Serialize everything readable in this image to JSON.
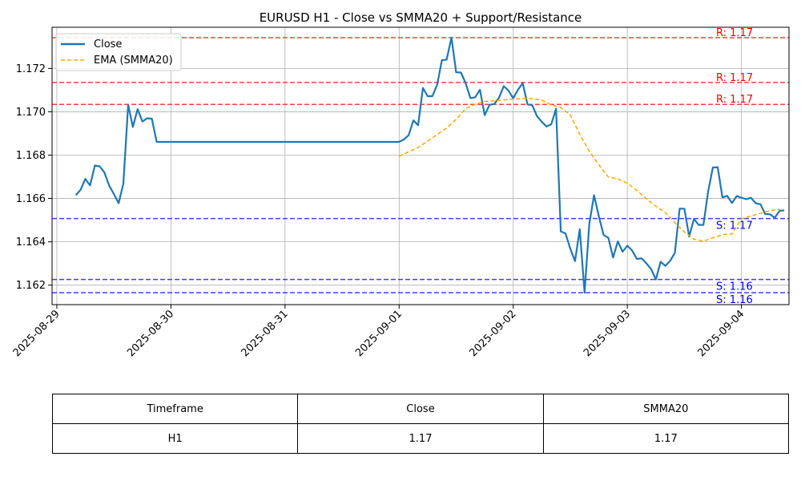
{
  "colors": {
    "close": "#1f77b4",
    "ema": "#ffa500",
    "resistance": "#ff0000",
    "support": "#0000ff",
    "grid": "#b0b0b0"
  },
  "chart_data": {
    "type": "line",
    "title": "EURUSD H1 - Close vs SMMA20 + Support/Resistance",
    "xlabel": "",
    "ylabel": "",
    "xlim": [
      "2025-08-28T23:00",
      "2025-09-04T10:00"
    ],
    "ylim": [
      1.1611,
      1.1739
    ],
    "grid": true,
    "legend_position": "upper-left",
    "x_ticks": [
      "2025-08-29",
      "2025-08-30",
      "2025-08-31",
      "2025-09-01",
      "2025-09-02",
      "2025-09-03",
      "2025-09-04"
    ],
    "y_ticks": [
      "1.162",
      "1.164",
      "1.166",
      "1.168",
      "1.170",
      "1.172"
    ],
    "series": [
      {
        "name": "Close",
        "style": "solid",
        "x": [
          "2025-08-29T04:00",
          "2025-08-29T05:00",
          "2025-08-29T06:00",
          "2025-08-29T07:00",
          "2025-08-29T08:00",
          "2025-08-29T09:00",
          "2025-08-29T10:00",
          "2025-08-29T11:00",
          "2025-08-29T12:00",
          "2025-08-29T13:00",
          "2025-08-29T14:00",
          "2025-08-29T15:00",
          "2025-08-29T16:00",
          "2025-08-29T17:00",
          "2025-08-29T18:00",
          "2025-08-29T19:00",
          "2025-08-29T20:00",
          "2025-08-29T21:00",
          "2025-08-29T22:00",
          "2025-08-29T23:00",
          "2025-09-01T00:00",
          "2025-09-01T01:00",
          "2025-09-01T02:00",
          "2025-09-01T03:00",
          "2025-09-01T04:00",
          "2025-09-01T05:00",
          "2025-09-01T06:00",
          "2025-09-01T07:00",
          "2025-09-01T08:00",
          "2025-09-01T09:00",
          "2025-09-01T10:00",
          "2025-09-01T11:00",
          "2025-09-01T12:00",
          "2025-09-01T13:00",
          "2025-09-01T14:00",
          "2025-09-01T15:00",
          "2025-09-01T16:00",
          "2025-09-01T17:00",
          "2025-09-01T18:00",
          "2025-09-01T19:00",
          "2025-09-01T20:00",
          "2025-09-01T21:00",
          "2025-09-01T22:00",
          "2025-09-01T23:00",
          "2025-09-02T00:00",
          "2025-09-02T01:00",
          "2025-09-02T02:00",
          "2025-09-02T03:00",
          "2025-09-02T04:00",
          "2025-09-02T05:00",
          "2025-09-02T06:00",
          "2025-09-02T07:00",
          "2025-09-02T08:00",
          "2025-09-02T09:00",
          "2025-09-02T10:00",
          "2025-09-02T11:00",
          "2025-09-02T12:00",
          "2025-09-02T13:00",
          "2025-09-02T14:00",
          "2025-09-02T15:00",
          "2025-09-02T16:00",
          "2025-09-02T17:00",
          "2025-09-02T18:00",
          "2025-09-02T19:00",
          "2025-09-02T20:00",
          "2025-09-02T21:00",
          "2025-09-02T22:00",
          "2025-09-02T23:00",
          "2025-09-03T00:00",
          "2025-09-03T01:00",
          "2025-09-03T02:00",
          "2025-09-03T03:00",
          "2025-09-03T04:00",
          "2025-09-03T05:00",
          "2025-09-03T06:00",
          "2025-09-03T07:00",
          "2025-09-03T08:00",
          "2025-09-03T09:00",
          "2025-09-03T10:00",
          "2025-09-03T11:00",
          "2025-09-03T12:00",
          "2025-09-03T13:00",
          "2025-09-03T14:00",
          "2025-09-03T15:00",
          "2025-09-03T16:00",
          "2025-09-03T17:00",
          "2025-09-03T18:00",
          "2025-09-03T19:00",
          "2025-09-03T20:00",
          "2025-09-03T21:00",
          "2025-09-03T22:00",
          "2025-09-03T23:00",
          "2025-09-04T00:00",
          "2025-09-04T01:00",
          "2025-09-04T02:00",
          "2025-09-04T03:00",
          "2025-09-04T04:00",
          "2025-09-04T05:00",
          "2025-09-04T06:00",
          "2025-09-04T07:00",
          "2025-09-04T08:00",
          "2025-09-04T09:00"
        ],
        "values": [
          1.16615,
          1.1664,
          1.1669,
          1.1666,
          1.16752,
          1.16748,
          1.1672,
          1.1666,
          1.1662,
          1.16578,
          1.16668,
          1.17032,
          1.1693,
          1.17012,
          1.16955,
          1.1697,
          1.16968,
          1.16861,
          1.16861,
          1.16861,
          1.16861,
          1.16872,
          1.16892,
          1.1696,
          1.16938,
          1.1711,
          1.17072,
          1.17072,
          1.17125,
          1.17238,
          1.17241,
          1.17342,
          1.17182,
          1.17181,
          1.17131,
          1.17063,
          1.17067,
          1.17102,
          1.16984,
          1.17032,
          1.17036,
          1.17064,
          1.17118,
          1.17098,
          1.17062,
          1.17102,
          1.17132,
          1.17034,
          1.1703,
          1.1698,
          1.16953,
          1.16932,
          1.16942,
          1.17014,
          1.16448,
          1.16438,
          1.16368,
          1.16311,
          1.16458,
          1.16165,
          1.16482,
          1.16615,
          1.16518,
          1.16432,
          1.16418,
          1.16327,
          1.16402,
          1.16354,
          1.16382,
          1.1636,
          1.16321,
          1.16324,
          1.16301,
          1.16274,
          1.16226,
          1.16308,
          1.16289,
          1.16312,
          1.16349,
          1.16553,
          1.16553,
          1.16424,
          1.16506,
          1.16478,
          1.16478,
          1.16633,
          1.16743,
          1.16744,
          1.16605,
          1.16612,
          1.16579,
          1.16611,
          1.16604,
          1.16597,
          1.16603,
          1.16578,
          1.16573,
          1.16528,
          1.16527,
          1.16511,
          1.16542,
          1.16545
        ]
      },
      {
        "name": "EMA (SMMA20)",
        "style": "dashed",
        "x": [
          "2025-09-01T00:00",
          "2025-09-01T02:00",
          "2025-09-01T04:00",
          "2025-09-01T06:00",
          "2025-09-01T08:00",
          "2025-09-01T10:00",
          "2025-09-01T12:00",
          "2025-09-01T14:00",
          "2025-09-01T16:00",
          "2025-09-01T18:00",
          "2025-09-01T20:00",
          "2025-09-01T22:00",
          "2025-09-02T00:00",
          "2025-09-02T02:00",
          "2025-09-02T04:00",
          "2025-09-02T06:00",
          "2025-09-02T08:00",
          "2025-09-02T10:00",
          "2025-09-02T12:00",
          "2025-09-02T14:00",
          "2025-09-02T16:00",
          "2025-09-02T18:00",
          "2025-09-02T20:00",
          "2025-09-02T22:00",
          "2025-09-03T00:00",
          "2025-09-03T02:00",
          "2025-09-03T04:00",
          "2025-09-03T06:00",
          "2025-09-03T08:00",
          "2025-09-03T10:00",
          "2025-09-03T12:00",
          "2025-09-03T14:00",
          "2025-09-03T16:00",
          "2025-09-03T18:00",
          "2025-09-03T20:00",
          "2025-09-03T22:00",
          "2025-09-04T00:00",
          "2025-09-04T02:00",
          "2025-09-04T04:00",
          "2025-09-04T06:00",
          "2025-09-04T08:00",
          "2025-09-04T09:00"
        ],
        "values": [
          1.16795,
          1.16815,
          1.16835,
          1.16865,
          1.16895,
          1.16925,
          1.16965,
          1.17015,
          1.17035,
          1.17048,
          1.17051,
          1.17054,
          1.17058,
          1.17062,
          1.1706,
          1.17054,
          1.17032,
          1.1702,
          1.16985,
          1.16896,
          1.16818,
          1.16755,
          1.16699,
          1.1669,
          1.1667,
          1.16637,
          1.16598,
          1.16564,
          1.16535,
          1.16488,
          1.16445,
          1.16412,
          1.16403,
          1.16418,
          1.16433,
          1.16436,
          1.16506,
          1.16519,
          1.16531,
          1.16544,
          1.16549,
          1.16542
        ]
      }
    ],
    "hlines": [
      {
        "kind": "resistance",
        "value": 1.17034,
        "label": "R: 1.17"
      },
      {
        "kind": "resistance",
        "value": 1.17135,
        "label": "R: 1.17"
      },
      {
        "kind": "resistance",
        "value": 1.17342,
        "label": "R: 1.17"
      },
      {
        "kind": "support",
        "value": 1.16507,
        "label": "S: 1.17"
      },
      {
        "kind": "support",
        "value": 1.16226,
        "label": "S: 1.16"
      },
      {
        "kind": "support",
        "value": 1.16165,
        "label": "S: 1.16"
      }
    ]
  },
  "table": {
    "headers": [
      "Timeframe",
      "Close",
      "SMMA20"
    ],
    "row": [
      "H1",
      "1.17",
      "1.17"
    ]
  }
}
